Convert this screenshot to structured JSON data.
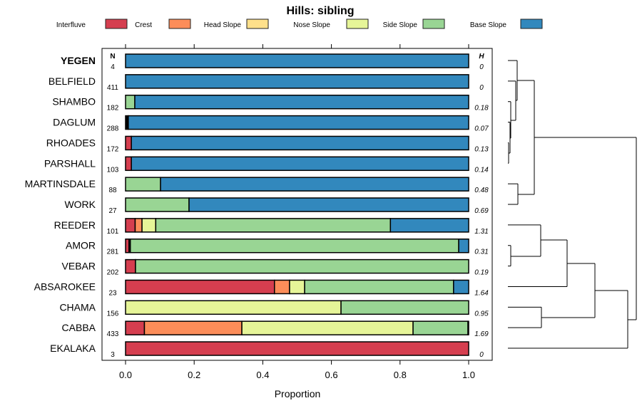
{
  "chart_data": {
    "type": "bar",
    "orientation": "horizontal-stacked",
    "title": "Hills: sibling",
    "xlabel": "Proportion",
    "xlim": [
      0,
      1
    ],
    "xticks": [
      "0.0",
      "0.2",
      "0.4",
      "0.6",
      "0.8",
      "1.0"
    ],
    "xtick_values": [
      0,
      0.2,
      0.4,
      0.6,
      0.8,
      1.0
    ],
    "n_header": "N",
    "h_header": "H",
    "legend_placement": "top",
    "legend": [
      {
        "key": "interfluve",
        "name": "Interfluve",
        "color": "#D53E4F"
      },
      {
        "key": "crest",
        "name": "Crest",
        "color": "#FC8D59"
      },
      {
        "key": "head",
        "name": "Head Slope",
        "color": "#FEE08B"
      },
      {
        "key": "nose",
        "name": "Nose Slope",
        "color": "#E6F598"
      },
      {
        "key": "side",
        "name": "Side Slope",
        "color": "#99D594"
      },
      {
        "key": "base",
        "name": "Base Slope",
        "color": "#3288BD"
      }
    ],
    "other_color": "#000000",
    "rows": [
      {
        "name": "YEGEN",
        "n": "4",
        "h": "0",
        "bold": true,
        "segments": [
          [
            "base",
            1.0
          ]
        ]
      },
      {
        "name": "BELFIELD",
        "n": "411",
        "h": "0",
        "segments": [
          [
            "base",
            1.0
          ]
        ]
      },
      {
        "name": "SHAMBO",
        "n": "182",
        "h": "0.18",
        "segments": [
          [
            "side",
            0.027
          ],
          [
            "base",
            0.973
          ]
        ]
      },
      {
        "name": "DAGLUM",
        "n": "288",
        "h": "0.07",
        "segments": [
          [
            "other",
            0.008
          ],
          [
            "base",
            0.992
          ]
        ]
      },
      {
        "name": "RHOADES",
        "n": "172",
        "h": "0.13",
        "segments": [
          [
            "interfluve",
            0.017
          ],
          [
            "base",
            0.983
          ]
        ]
      },
      {
        "name": "PARSHALL",
        "n": "103",
        "h": "0.14",
        "segments": [
          [
            "interfluve",
            0.017
          ],
          [
            "base",
            0.983
          ]
        ]
      },
      {
        "name": "MARTINSDALE",
        "n": "88",
        "h": "0.48",
        "segments": [
          [
            "side",
            0.102
          ],
          [
            "base",
            0.898
          ]
        ]
      },
      {
        "name": "WORK",
        "n": "27",
        "h": "0.69",
        "segments": [
          [
            "side",
            0.185
          ],
          [
            "base",
            0.815
          ]
        ]
      },
      {
        "name": "REEDER",
        "n": "101",
        "h": "1.31",
        "segments": [
          [
            "interfluve",
            0.028
          ],
          [
            "crest",
            0.02
          ],
          [
            "nose",
            0.04
          ],
          [
            "side",
            0.684
          ],
          [
            "base",
            0.228
          ]
        ]
      },
      {
        "name": "AMOR",
        "n": "281",
        "h": "0.31",
        "segments": [
          [
            "interfluve",
            0.01
          ],
          [
            "other",
            0.004
          ],
          [
            "side",
            0.957
          ],
          [
            "base",
            0.029
          ]
        ]
      },
      {
        "name": "VEBAR",
        "n": "202",
        "h": "0.19",
        "segments": [
          [
            "interfluve",
            0.029
          ],
          [
            "side",
            0.971
          ]
        ]
      },
      {
        "name": "ABSAROKEE",
        "n": "23",
        "h": "1.64",
        "segments": [
          [
            "interfluve",
            0.434
          ],
          [
            "crest",
            0.044
          ],
          [
            "nose",
            0.044
          ],
          [
            "side",
            0.434
          ],
          [
            "base",
            0.044
          ]
        ]
      },
      {
        "name": "CHAMA",
        "n": "156",
        "h": "0.95",
        "segments": [
          [
            "nose",
            0.628
          ],
          [
            "side",
            0.372
          ]
        ]
      },
      {
        "name": "CABBA",
        "n": "433",
        "h": "1.69",
        "segments": [
          [
            "interfluve",
            0.055
          ],
          [
            "crest",
            0.284
          ],
          [
            "nose",
            0.499
          ],
          [
            "side",
            0.16
          ],
          [
            "other",
            0.002
          ]
        ]
      },
      {
        "name": "EKALAKA",
        "n": "3",
        "h": "0",
        "segments": [
          [
            "interfluve",
            1.0
          ]
        ]
      }
    ]
  }
}
